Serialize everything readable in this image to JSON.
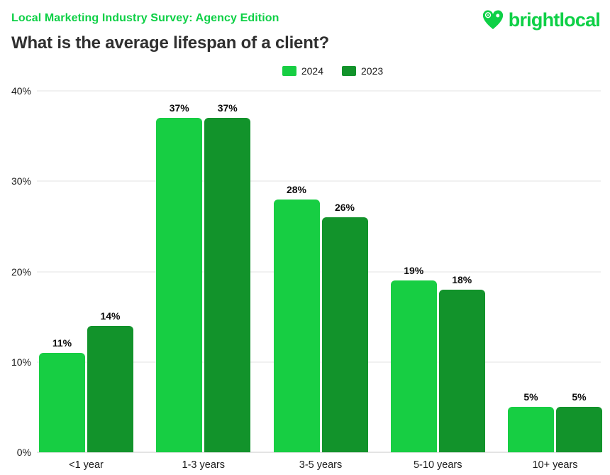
{
  "header": {
    "eyebrow": "Local Marketing Industry Survey: Agency Edition",
    "title": "What is the average lifespan of a client?",
    "logo_text": "brightlocal"
  },
  "colors": {
    "brand_green": "#0ed046",
    "series_2024": "#17ce43",
    "series_2023": "#12932b",
    "title_text": "#2f2f2f",
    "gridline": "#f1f1f1",
    "axis_line": "#e4e4e4"
  },
  "chart_data": {
    "type": "bar",
    "title": "What is the average lifespan of a client?",
    "categories": [
      "<1 year",
      "1-3 years",
      "3-5 years",
      "5-10 years",
      "10+ years"
    ],
    "series": [
      {
        "name": "2024",
        "color": "#17ce43",
        "values": [
          11,
          37,
          28,
          19,
          5
        ]
      },
      {
        "name": "2023",
        "color": "#12932b",
        "values": [
          14,
          37,
          26,
          18,
          5
        ]
      }
    ],
    "data_label_suffix": "%",
    "ylabel": "",
    "ylim": [
      0,
      40
    ],
    "yticks": [
      0,
      10,
      20,
      30,
      40
    ],
    "ytick_suffix": "%",
    "grid": true,
    "legend_position": "top-center",
    "data_labels": true
  }
}
